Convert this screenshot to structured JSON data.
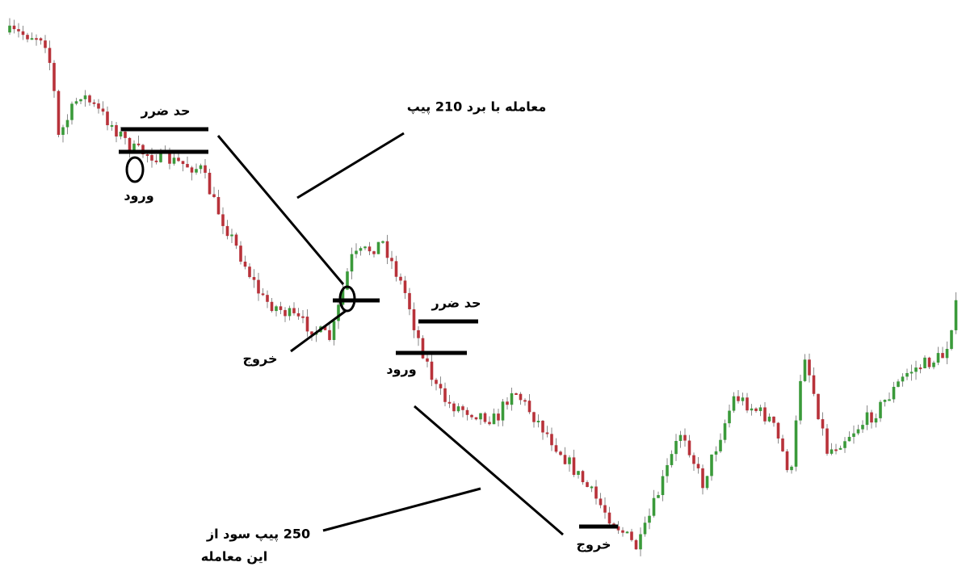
{
  "annotations": {
    "stop_loss_1": "حد ضرر",
    "entry_1": "ورود",
    "trade_1_gain": "معامله با برد 210 پیپ",
    "exit_1": "خروج",
    "stop_loss_2": "حد ضرر",
    "entry_2": "ورود",
    "trade_2_gain_line1": "250 پیپ سود از",
    "trade_2_gain_line2": "این معامله",
    "exit_2": "خروج"
  }
}
